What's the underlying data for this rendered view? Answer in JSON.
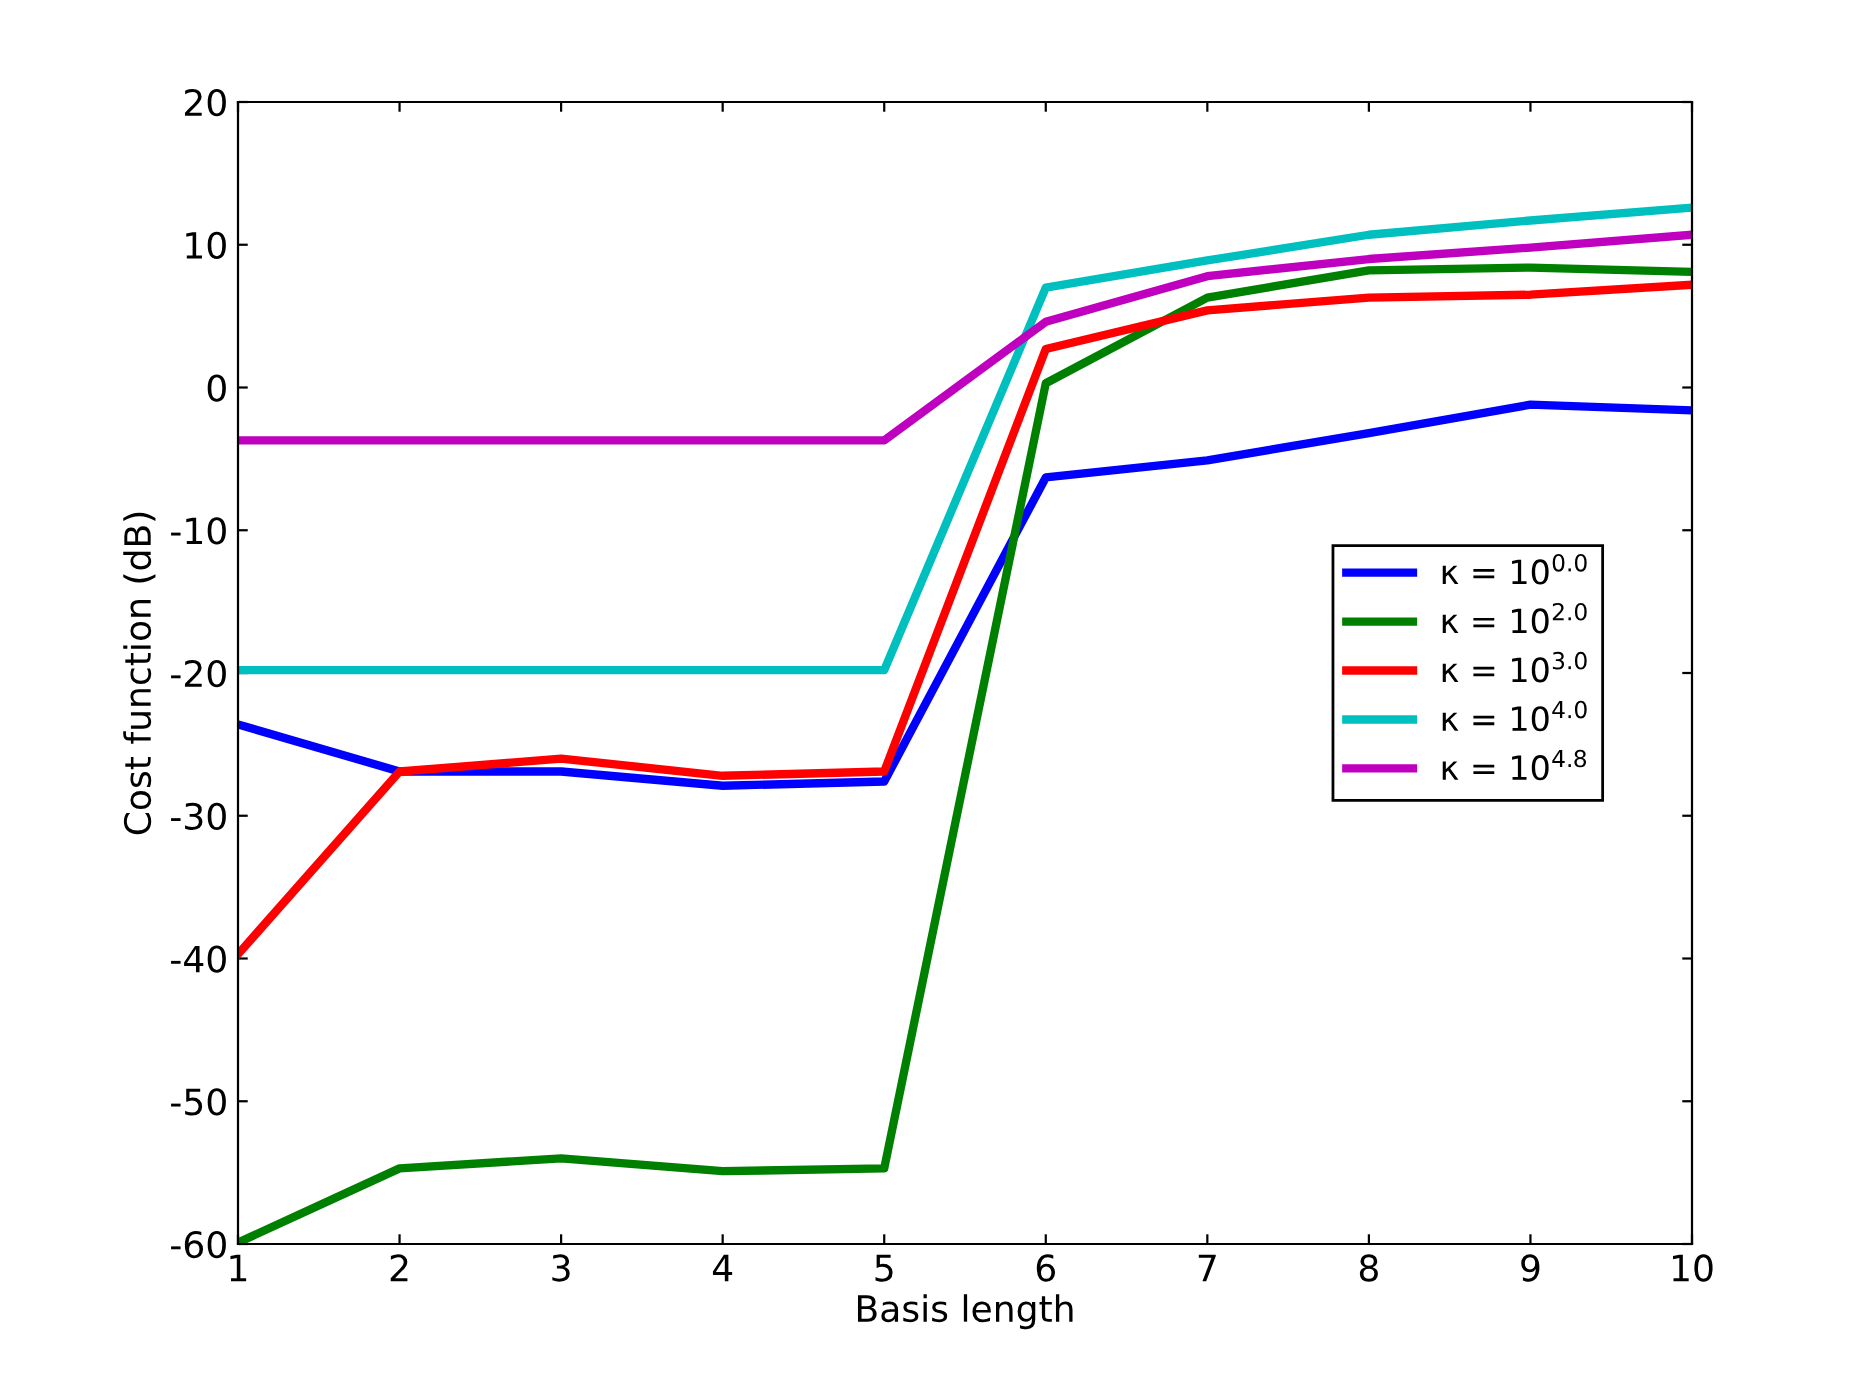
{
  "chart_data": {
    "type": "line",
    "xlabel": "Basis length",
    "ylabel": "Cost function (dB)",
    "x": [
      1,
      2,
      3,
      4,
      5,
      6,
      7,
      8,
      9,
      10
    ],
    "series": [
      {
        "name": "κ = 10$^{0.0}$",
        "color": "#0000ff",
        "values": [
          -23.6,
          -26.9,
          -26.9,
          -27.9,
          -27.6,
          -6.3,
          -5.1,
          -3.2,
          -1.2,
          -1.6
        ]
      },
      {
        "name": "κ = 10$^{2.0}$",
        "color": "#008000",
        "values": [
          -59.9,
          -54.7,
          -54.0,
          -54.9,
          -54.7,
          0.3,
          6.3,
          8.2,
          8.4,
          8.1
        ]
      },
      {
        "name": "κ = 10$^{3.0}$",
        "color": "#ff0000",
        "values": [
          -39.7,
          -26.9,
          -26.0,
          -27.2,
          -26.9,
          2.7,
          5.4,
          6.3,
          6.5,
          7.2
        ]
      },
      {
        "name": "κ = 10$^{4.0}$",
        "color": "#00bfbf",
        "values": [
          -19.8,
          -19.8,
          -19.8,
          -19.8,
          -19.8,
          7.0,
          8.9,
          10.7,
          11.7,
          12.6
        ]
      },
      {
        "name": "κ = 10$^{4.8}$",
        "color": "#bf00bf",
        "values": [
          -3.7,
          -3.7,
          -3.7,
          -3.7,
          -3.7,
          4.6,
          7.8,
          9.0,
          9.8,
          10.7
        ]
      }
    ],
    "xlim": [
      1,
      10
    ],
    "xticks": [
      1,
      2,
      3,
      4,
      5,
      6,
      7,
      8,
      9,
      10
    ],
    "ylim": [
      -60,
      20
    ],
    "yticks": [
      -60,
      -50,
      -40,
      -30,
      -20,
      -10,
      0,
      10,
      20
    ],
    "legend": "right",
    "grid": false,
    "line_style": "solid",
    "marker": "none"
  }
}
